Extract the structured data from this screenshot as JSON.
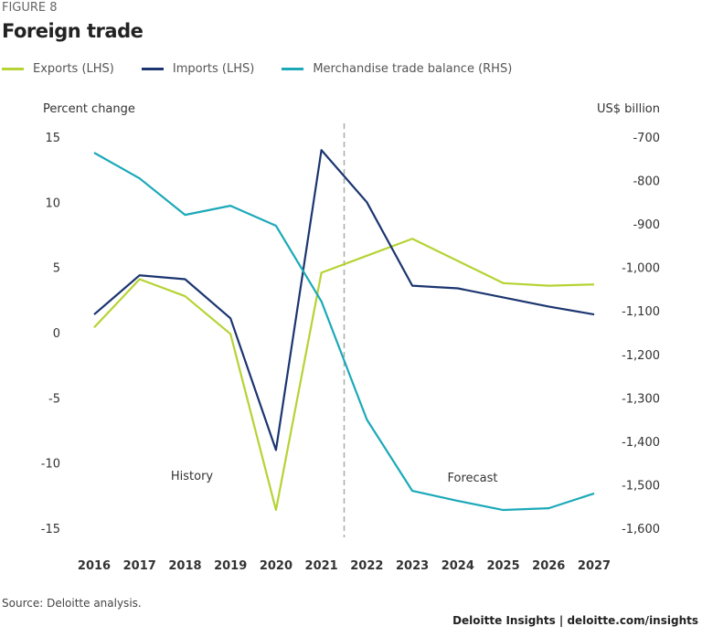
{
  "figure_label": "FIGURE 8",
  "chart_data": {
    "type": "line",
    "title": "Foreign trade",
    "x": [
      2016,
      2017,
      2018,
      2019,
      2020,
      2021,
      2022,
      2023,
      2024,
      2025,
      2026,
      2027
    ],
    "ylabel_left": "Percent change",
    "ylabel_right": "US$ billion",
    "ylim_left": [
      -15,
      15
    ],
    "yticks_left": [
      15,
      10,
      5,
      0,
      -5,
      -10,
      -15
    ],
    "ylim_right": [
      -1600,
      -700
    ],
    "yticks_right": [
      -700,
      -800,
      -900,
      -1000,
      -1100,
      -1200,
      -1300,
      -1400,
      -1500,
      -1600
    ],
    "yticks_right_labels": [
      "-700",
      "-800",
      "-900",
      "-1,000",
      "-1,100",
      "-1,200",
      "-1,300",
      "-1,400",
      "-1,500",
      "-1,600"
    ],
    "grid": false,
    "legend_placement": "top",
    "divider_between": [
      2021,
      2022
    ],
    "annotations": [
      "History",
      "Forecast"
    ],
    "series": [
      {
        "name": "Exports (LHS)",
        "axis": "left",
        "color": "#b5d334",
        "values": [
          0.4,
          4.1,
          2.8,
          -0.1,
          -13.6,
          4.6,
          5.9,
          7.2,
          5.5,
          3.8,
          3.6,
          3.7
        ]
      },
      {
        "name": "Imports (LHS)",
        "axis": "left",
        "color": "#1b3570",
        "values": [
          1.4,
          4.4,
          4.1,
          1.1,
          -9.0,
          14.0,
          10.0,
          3.6,
          3.4,
          2.7,
          2.0,
          1.4
        ]
      },
      {
        "name": "Merchandise trade balance (RHS)",
        "axis": "right",
        "color": "#1ba9b8",
        "values": [
          -736,
          -795,
          -879,
          -858,
          -904,
          -1078,
          -1350,
          -1514,
          -1537,
          -1558,
          -1554,
          -1520
        ]
      }
    ]
  },
  "source": "Source: Deloitte analysis.",
  "brand": "Deloitte Insights | deloitte.com/insights"
}
